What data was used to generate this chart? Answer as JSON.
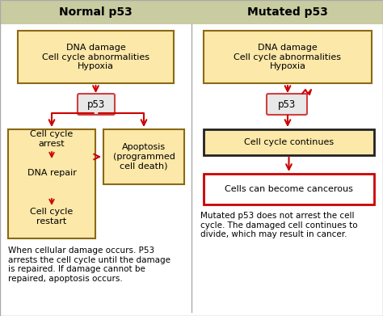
{
  "bg_color": "#ffffff",
  "header_bg": "#c8cca0",
  "header_text_color": "#000000",
  "box_fill_normal": "#fce8a8",
  "box_edge_normal": "#8b6914",
  "box_fill_cancerous": "#ffffff",
  "box_edge_cancerous": "#cc0000",
  "box_edge_dark": "#222222",
  "arrow_color": "#cc0000",
  "divider_color": "#aaaaaa",
  "left_title": "Normal p53",
  "right_title": "Mutated p53",
  "left_box1_text": "DNA damage\nCell cycle abnormalities\nHypoxia",
  "left_p53_text": "p53",
  "left_box2_text": "Cell cycle\narrest\n\nDNA repair\n\nCell cycle\nrestart",
  "left_box3_text": "Apoptosis\n(programmed\ncell death)",
  "right_box1_text": "DNA damage\nCell cycle abnormalities\nHypoxia",
  "right_p53_text": "p53",
  "right_box2_text": "Cell cycle continues",
  "right_box3_text": "Cells can become cancerous",
  "left_caption": "When cellular damage occurs. P53\narrests the cell cycle until the damage\nis repaired. If damage cannot be\nrepaired, apoptosis occurs.",
  "right_caption": "Mutated p53 does not arrest the cell\ncycle. The damaged cell continues to\ndivide, which may result in cancer.",
  "font_size_title": 10,
  "font_size_box": 8,
  "font_size_caption": 7.5,
  "font_size_p53": 8.5
}
